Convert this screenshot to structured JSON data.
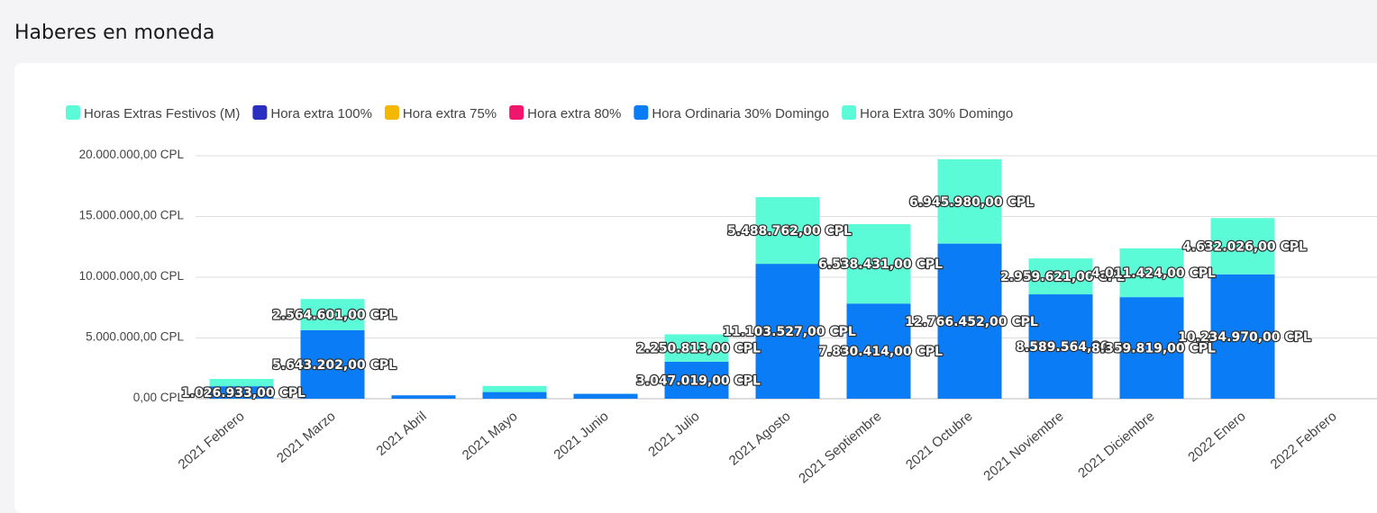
{
  "page": {
    "title": "Haberes en moneda"
  },
  "chart_data": {
    "type": "bar",
    "stacked": true,
    "title": "Haberes en moneda",
    "ylim": [
      0,
      20000000
    ],
    "yticks": [
      {
        "value": 0,
        "label": "0,00 CPL"
      },
      {
        "value": 5000000,
        "label": "5.000.000,00 CPL"
      },
      {
        "value": 10000000,
        "label": "10.000.000,00 CPL"
      },
      {
        "value": 15000000,
        "label": "15.000.000,00 CPL"
      },
      {
        "value": 20000000,
        "label": "20.000.000,00 CPL"
      }
    ],
    "categories": [
      "2021 Febrero",
      "2021 Marzo",
      "2021 Abril",
      "2021 Mayo",
      "2021 Junio",
      "2021 Julio",
      "2021 Agosto",
      "2021 Septiembre",
      "2021 Octubre",
      "2021 Noviembre",
      "2021 Diciembre",
      "2022 Enero",
      "2022 Febrero"
    ],
    "legend": [
      {
        "name": "Horas Extras Festivos (M)",
        "color": "#5cfbd8"
      },
      {
        "name": "Hora extra 100%",
        "color": "#2b2fbf"
      },
      {
        "name": "Hora extra 75%",
        "color": "#f5b800"
      },
      {
        "name": "Hora extra 80%",
        "color": "#f0166e"
      },
      {
        "name": "Hora Ordinaria 30% Domingo",
        "color": "#0a7cf5"
      },
      {
        "name": "Hora Extra 30% Domingo",
        "color": "#5cfbd8"
      }
    ],
    "series": [
      {
        "name": "Hora Ordinaria 30% Domingo",
        "color": "#0a7cf5",
        "values": [
          1026933,
          5643202,
          280000,
          550000,
          400000,
          3047019,
          11103527,
          7830414,
          12766452,
          8589564,
          8359819,
          10234970,
          0
        ],
        "labels": [
          "1.026.933,00 CPL",
          "5.643.202,00 CPL",
          "",
          "",
          "",
          "3.047.019,00 CPL",
          "11.103.527,00 CPL",
          "7.830.414,00 CPL",
          "12.766.452,00 CPL",
          "8.589.564,00",
          "8.359.819,00 CPL",
          "10.234.970,00 CPL",
          ""
        ]
      },
      {
        "name": "Hora Extra 30% Domingo",
        "color": "#5cfbd8",
        "values": [
          600000,
          2564601,
          0,
          500000,
          0,
          2250813,
          5488762,
          6538431,
          6945980,
          2959621,
          4011424,
          4632026,
          0
        ],
        "labels": [
          "",
          "2.564.601,00 CPL",
          "",
          "",
          "",
          "2.250.813,00 CPL",
          "5.488.762,00 CPL",
          "6.538.431,00 CPL",
          "6.945.980,00 CPL",
          "2.959.621,00 CPL",
          "4.011.424,00 CPL",
          "4.632.026,00 CPL",
          ""
        ]
      }
    ]
  }
}
